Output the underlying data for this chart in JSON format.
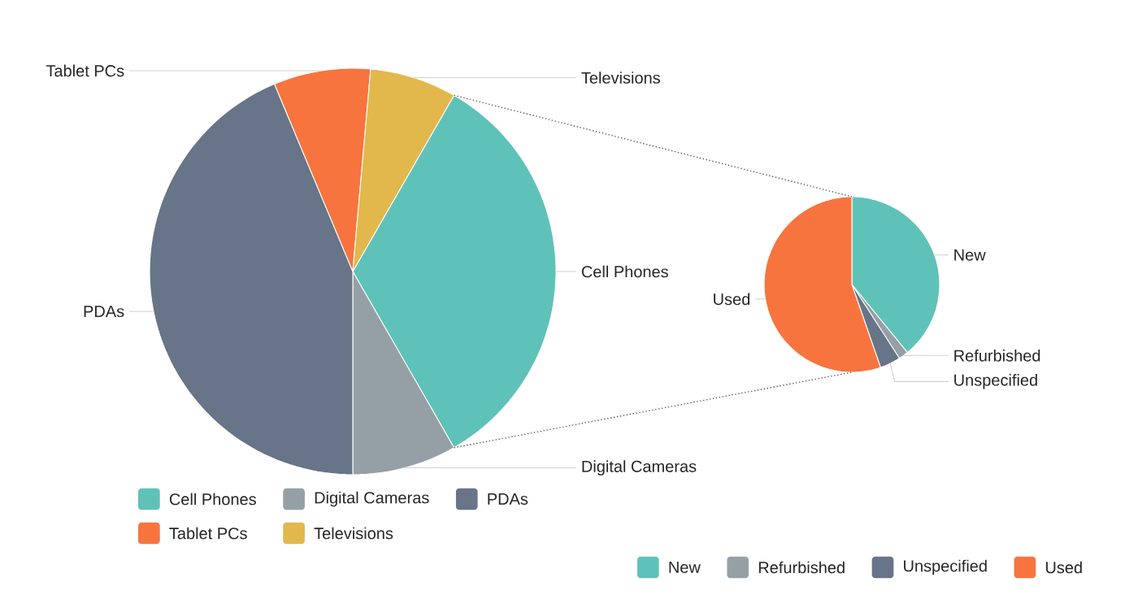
{
  "chart_data": [
    {
      "type": "pie",
      "categories": [
        "Cell Phones",
        "Digital Cameras",
        "PDAs",
        "Tablet PCs",
        "Televisions"
      ],
      "values": [
        33.4,
        8.3,
        43.7,
        7.7,
        6.9
      ],
      "colors": [
        "#5fc2b8",
        "#95a0a6",
        "#687487",
        "#f7743f",
        "#e2b84c"
      ],
      "legend": "bottom"
    },
    {
      "type": "pie",
      "categories": [
        "New",
        "Refurbished",
        "Unspecified",
        "Used"
      ],
      "values": [
        39.1,
        1.8,
        3.8,
        55.3
      ],
      "colors": [
        "#5fc2b8",
        "#95a0a6",
        "#687487",
        "#f7743f"
      ],
      "legend": "bottom"
    }
  ]
}
